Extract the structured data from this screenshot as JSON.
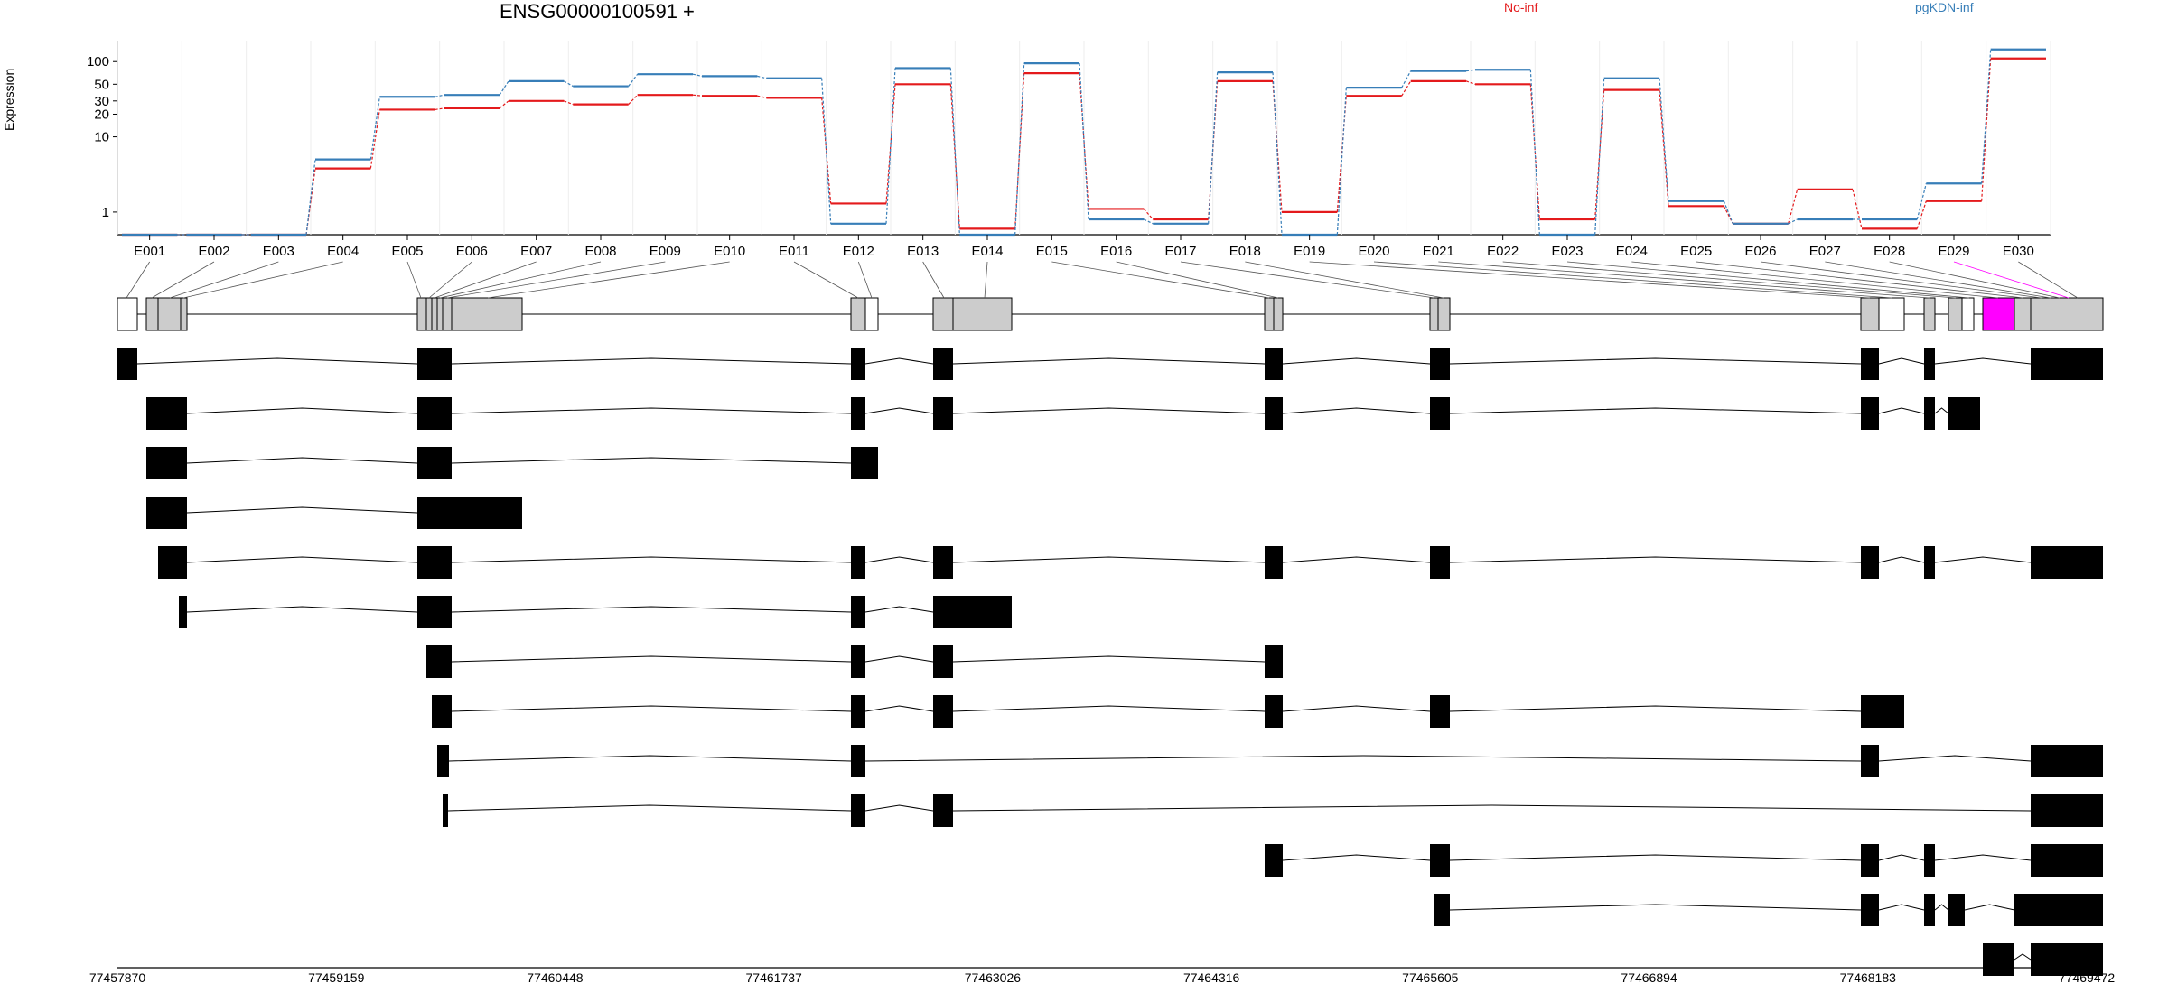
{
  "chart_data": {
    "type": "line",
    "title": "ENSG00000100591 +",
    "ylabel": "Expression",
    "xlabel": "",
    "yscale": "log",
    "ylim": [
      0.5,
      190
    ],
    "yticks": [
      "1",
      "10",
      "20",
      "30",
      "50",
      "100"
    ],
    "grid": true,
    "legend_placement": "top-right",
    "colors": {
      "no_inf": "#e41a1c",
      "pgkdn_inf": "#377eb8",
      "highlight": "#ff00ff",
      "exon_fill": "#cccccc",
      "transcript_fill": "#000000"
    },
    "categories": [
      "E001",
      "E002",
      "E003",
      "E004",
      "E005",
      "E006",
      "E007",
      "E008",
      "E009",
      "E010",
      "E011",
      "E012",
      "E013",
      "E014",
      "E015",
      "E016",
      "E017",
      "E018",
      "E019",
      "E020",
      "E021",
      "E022",
      "E023",
      "E024",
      "E025",
      "E026",
      "E027",
      "E028",
      "E029",
      "E030"
    ],
    "series": [
      {
        "name": "No-inf",
        "values": [
          0.5,
          0.5,
          0.5,
          3.8,
          23,
          24,
          30,
          27,
          36,
          35,
          33,
          1.3,
          50,
          0.6,
          70,
          1.1,
          0.8,
          55,
          1.0,
          35,
          55,
          50,
          0.8,
          42,
          1.2,
          0.7,
          2.0,
          0.6,
          1.4,
          110
        ]
      },
      {
        "name": "pgKDN-inf",
        "values": [
          0.5,
          0.5,
          0.5,
          5.0,
          34,
          36,
          55,
          47,
          68,
          64,
          60,
          0.7,
          82,
          0.5,
          95,
          0.8,
          0.7,
          72,
          0.5,
          45,
          75,
          78,
          0.5,
          60,
          1.4,
          0.7,
          0.8,
          0.8,
          2.4,
          145
        ]
      }
    ],
    "genomic_axis": {
      "ticks": [
        "77457870",
        "77459159",
        "77460448",
        "77461737",
        "77463026",
        "77464316",
        "77465605",
        "77466894",
        "77468183",
        "77469472"
      ]
    },
    "highlighted_exon": "E029"
  }
}
